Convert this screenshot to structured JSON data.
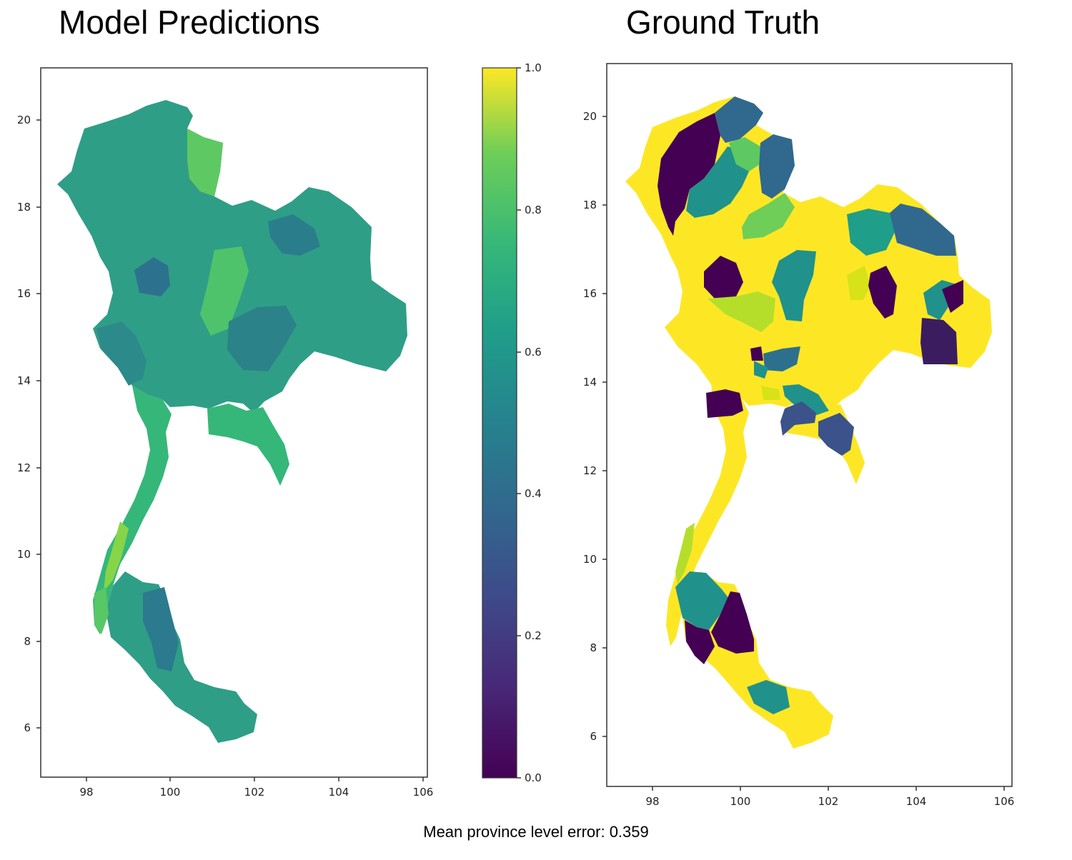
{
  "left_panel": {
    "title": "Model Predictions",
    "x_ticks": [
      "98",
      "100",
      "102",
      "104",
      "106"
    ],
    "y_ticks": [
      "6",
      "8",
      "10",
      "12",
      "14",
      "16",
      "18",
      "20"
    ]
  },
  "right_panel": {
    "title": "Ground Truth",
    "x_ticks": [
      "98",
      "100",
      "102",
      "104",
      "106"
    ],
    "y_ticks": [
      "6",
      "8",
      "10",
      "12",
      "14",
      "16",
      "18",
      "20"
    ]
  },
  "colorbar": {
    "ticks": [
      "0.0",
      "0.2",
      "0.4",
      "0.6",
      "0.8",
      "1.0"
    ],
    "colormap": "viridis",
    "range": [
      0,
      1
    ],
    "colors": [
      "#440154",
      "#3b528b",
      "#21918c",
      "#5ec962",
      "#fde725"
    ]
  },
  "footer": {
    "error_text": "Mean province level error: 0.359"
  },
  "map_colors": {
    "prediction_main": "#2f9e86",
    "prediction_high": "#5ec962",
    "prediction_low": "#2c728e",
    "truth_yellow": "#fde725",
    "truth_purple": "#440154",
    "truth_teal": "#21918c",
    "truth_blue": "#31688e",
    "truth_green": "#5ec962",
    "truth_lime": "#b5de2b"
  }
}
